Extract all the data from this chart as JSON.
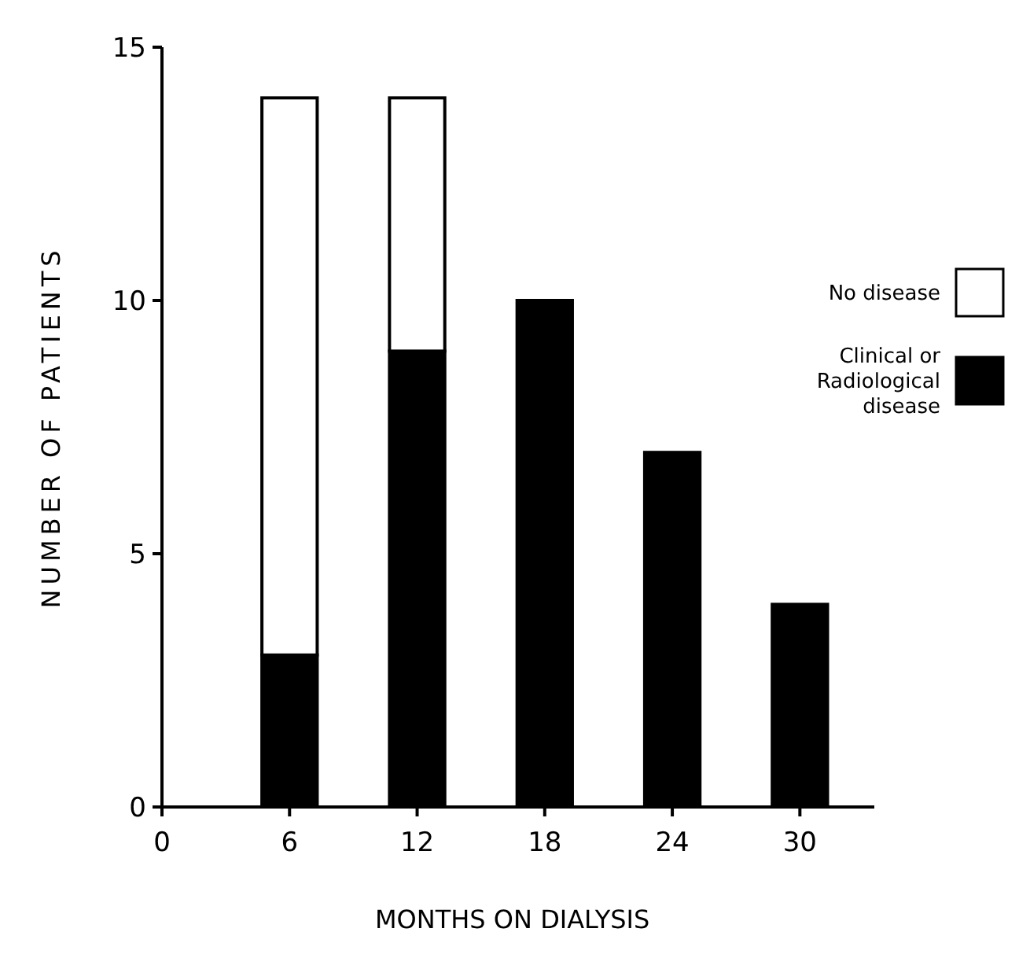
{
  "chart_data": {
    "type": "bar",
    "xlabel": "MONTHS ON DIALYSIS",
    "ylabel": "NUMBER OF PATIENTS",
    "x": [
      6,
      12,
      18,
      24,
      30
    ],
    "stacked": true,
    "series": [
      {
        "name": "Clinical or Radiological disease",
        "color": "#000000",
        "values": [
          3,
          9,
          10,
          7,
          4
        ]
      },
      {
        "name": "No disease",
        "color": "#ffffff",
        "values": [
          11,
          5,
          0,
          0,
          0
        ]
      }
    ],
    "xlim": [
      0,
      33.5
    ],
    "xticks": [
      0,
      6,
      12,
      18,
      24,
      30
    ],
    "ylim": [
      0,
      15
    ],
    "yticks": [
      0,
      5,
      10,
      15
    ],
    "grid": false,
    "legend": "right"
  }
}
